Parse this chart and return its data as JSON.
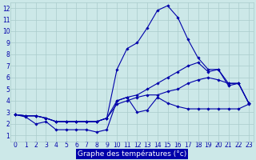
{
  "xlabel": "Graphe des températures (°c)",
  "bg_color": "#cce8e8",
  "grid_color": "#aacccc",
  "line_color": "#0000aa",
  "marker": "D",
  "markersize": 1.8,
  "linewidth": 0.8,
  "xlim": [
    -0.5,
    23.5
  ],
  "ylim": [
    0.5,
    12.5
  ],
  "xticks": [
    0,
    1,
    2,
    3,
    4,
    5,
    6,
    7,
    8,
    9,
    10,
    11,
    12,
    13,
    14,
    15,
    16,
    17,
    18,
    19,
    20,
    21,
    22,
    23
  ],
  "yticks": [
    1,
    2,
    3,
    4,
    5,
    6,
    7,
    8,
    9,
    10,
    11,
    12
  ],
  "series": [
    [
      2.8,
      2.6,
      2.0,
      2.2,
      1.5,
      1.5,
      1.5,
      1.5,
      1.3,
      1.5,
      4.0,
      4.3,
      3.0,
      3.2,
      4.3,
      3.8,
      3.5,
      3.3,
      3.3,
      3.3,
      3.3,
      3.3,
      3.3,
      3.7
    ],
    [
      2.8,
      2.7,
      2.7,
      2.5,
      2.2,
      2.2,
      2.2,
      2.2,
      2.2,
      2.5,
      3.7,
      4.0,
      4.3,
      4.5,
      4.5,
      4.8,
      5.0,
      5.5,
      5.8,
      6.0,
      5.8,
      5.5,
      5.5,
      3.8
    ],
    [
      2.8,
      2.7,
      2.7,
      2.5,
      2.2,
      2.2,
      2.2,
      2.2,
      2.2,
      2.5,
      4.0,
      4.3,
      4.5,
      5.0,
      5.5,
      6.0,
      6.5,
      7.0,
      7.3,
      6.5,
      6.7,
      5.5,
      5.5,
      3.8
    ],
    [
      2.8,
      2.7,
      2.7,
      2.5,
      2.2,
      2.2,
      2.2,
      2.2,
      2.2,
      2.5,
      6.7,
      8.5,
      9.0,
      10.3,
      11.8,
      12.2,
      11.2,
      9.3,
      7.7,
      6.7,
      6.7,
      5.3,
      5.5,
      3.8
    ]
  ],
  "tick_fontsize": 5.5,
  "xlabel_fontsize": 6.5,
  "xlabel_color": "#000088",
  "xlabel_bg": "#0000aa"
}
